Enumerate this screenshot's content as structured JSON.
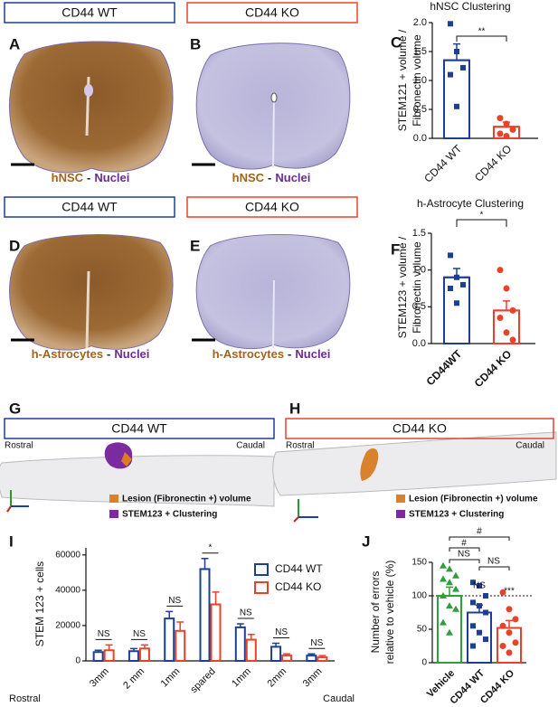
{
  "panels": {
    "letters": [
      "A",
      "B",
      "C",
      "D",
      "E",
      "F",
      "G",
      "H",
      "I",
      "J"
    ],
    "sections": [
      {
        "title": "CD44 WT",
        "color": "#1c3f94",
        "caption": [
          "hNSC",
          "-",
          "Nuclei"
        ]
      },
      {
        "title": "CD44 KO",
        "color": "#e8432a",
        "caption": [
          "hNSC",
          "-",
          "Nuclei"
        ]
      },
      {
        "title": "CD44 WT",
        "color": "#1c3f94",
        "caption": [
          "h-Astrocytes",
          "-",
          "Nuclei"
        ]
      },
      {
        "title": "CD44 KO",
        "color": "#e8432a",
        "caption": [
          "h-Astrocytes",
          "-",
          "Nuclei"
        ]
      },
      {
        "title": "CD44 WT",
        "color": "#1c3f94",
        "rostral": "Rostral",
        "caudal": "Caudal",
        "legend": [
          "Lesion (Fibronectin +) volume",
          "STEM123 + Clustering"
        ]
      },
      {
        "title": "CD44 KO",
        "color": "#e8432a",
        "rostral": "Rostral",
        "caudal": "Caudal",
        "legend": [
          "Lesion (Fibronectin +) volume",
          "STEM123 + Clustering"
        ]
      }
    ]
  },
  "chart_data": [
    {
      "type": "bar",
      "title": "hNSC Clustering",
      "ylabel": [
        "STEM121 + volume /",
        "Fibronectin volume"
      ],
      "categories": [
        "CD44 WT",
        "CD44 KO"
      ],
      "colors": [
        "#1c3f94",
        "#e8432a"
      ],
      "markers": [
        "square",
        "circle"
      ],
      "values": [
        1.35,
        0.2
      ],
      "errors": [
        0.28,
        0.08
      ],
      "points": [
        [
          1.98,
          1.5,
          1.22,
          1.1,
          0.55
        ],
        [
          0.35,
          0.25,
          0.15,
          0.08,
          0.04
        ]
      ],
      "ylim": [
        0,
        2
      ],
      "yticks": [
        {
          "value": 0,
          "label": "0.0"
        },
        {
          "value": 0.5,
          "label": "0.5"
        },
        {
          "value": 1,
          "label": "1.0"
        },
        {
          "value": 1.5,
          "label": "1.5"
        },
        {
          "value": 2,
          "label": "2.0"
        }
      ],
      "annotations": [
        "**"
      ]
    },
    {
      "type": "bar",
      "title": "h-Astrocyte Clustering",
      "ylabel": [
        "STEM123 + volume /",
        "Fibronectin volume"
      ],
      "categories": [
        "CD44WT",
        "CD44 KO"
      ],
      "colors": [
        "#1c3f94",
        "#e8432a"
      ],
      "markers": [
        "square",
        "circle"
      ],
      "values": [
        0.9,
        0.45
      ],
      "errors": [
        0.12,
        0.13
      ],
      "points": [
        [
          1.2,
          0.9,
          0.8,
          0.75,
          0.55
        ],
        [
          1.0,
          0.75,
          0.45,
          0.35,
          0.15,
          0.05
        ]
      ],
      "ylim": [
        0,
        1.5
      ],
      "yticks": [
        {
          "value": 0,
          "label": "0.0"
        },
        {
          "value": 0.5,
          "label": "0.5"
        },
        {
          "value": 1,
          "label": "1.0"
        },
        {
          "value": 1.5,
          "label": "1.5"
        }
      ],
      "annotations": [
        "*"
      ]
    },
    {
      "type": "bar",
      "ylabel": [
        "STEM 123 + cells"
      ],
      "categories": [
        "3mm",
        "2 mm",
        "1mm",
        "spared",
        "1mm",
        "2mm",
        "3mm"
      ],
      "series": [
        {
          "name": "CD44 WT",
          "color": "#1c3f94",
          "values": [
            5000,
            5500,
            24000,
            52000,
            19000,
            8000,
            3000
          ],
          "errors": [
            1000,
            1500,
            4000,
            6000,
            2000,
            2000,
            1000
          ]
        },
        {
          "name": "CD44 KO",
          "color": "#e8432a",
          "values": [
            6000,
            7000,
            17000,
            32000,
            12000,
            3000,
            2000
          ],
          "errors": [
            3000,
            2000,
            5000,
            7000,
            3000,
            1000,
            1000
          ]
        }
      ],
      "ylim": [
        0,
        64000
      ],
      "yticks": [
        0,
        20000,
        40000,
        60000
      ],
      "annotations": [
        "NS",
        "NS",
        "NS",
        "*",
        "NS",
        "NS",
        "NS"
      ],
      "rostral": "Rostral",
      "caudal": "Caudal"
    },
    {
      "type": "bar",
      "ylabel": [
        "Number of errors",
        "relative to vehicle (%)"
      ],
      "categories": [
        "Vehicle",
        "CD44 WT",
        "CD44 KO"
      ],
      "colors": [
        "#2e9e3e",
        "#1c3f94",
        "#e8432a"
      ],
      "markers": [
        "triangle",
        "square",
        "circle"
      ],
      "values": [
        100,
        75,
        52
      ],
      "errors": [
        13,
        11,
        11
      ],
      "points": [
        [
          145,
          140,
          130,
          125,
          120,
          110,
          100,
          85,
          80,
          60,
          45
        ],
        [
          120,
          115,
          100,
          90,
          85,
          75,
          55,
          45,
          35,
          25
        ],
        [
          105,
          80,
          65,
          55,
          45,
          30,
          25,
          15
        ]
      ],
      "ylim": [
        0,
        150
      ],
      "yticks": [
        0,
        50,
        100,
        150
      ],
      "reference_line": 100,
      "annotations": [
        "#",
        "#",
        "NS",
        "NS",
        "NS",
        "***"
      ]
    }
  ]
}
